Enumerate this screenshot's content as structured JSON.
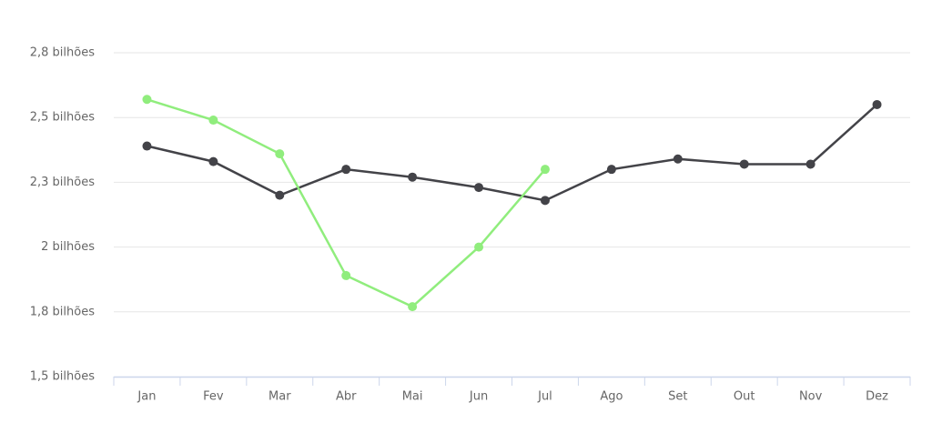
{
  "chart_data": {
    "type": "line",
    "categories": [
      "Jan",
      "Fev",
      "Mar",
      "Abr",
      "Mai",
      "Jun",
      "Jul",
      "Ago",
      "Set",
      "Out",
      "Nov",
      "Dez"
    ],
    "series": [
      {
        "color": "#434348",
        "values": [
          2.39,
          2.33,
          2.2,
          2.3,
          2.27,
          2.23,
          2.18,
          2.3,
          2.34,
          2.32,
          2.32,
          2.55
        ]
      },
      {
        "color": "#90ed7d",
        "values": [
          2.57,
          2.49,
          2.36,
          1.89,
          1.77,
          2.0,
          2.3,
          null,
          null,
          null,
          null,
          null
        ]
      }
    ],
    "ylim": [
      1.5,
      2.75
    ],
    "yticks": [
      {
        "value": 1.5,
        "label": "1,5 bilhões"
      },
      {
        "value": 1.75,
        "label": "1,8 bilhões"
      },
      {
        "value": 2,
        "label": "2 bilhões"
      },
      {
        "value": 2.25,
        "label": "2,3 bilhões"
      },
      {
        "value": 2.5,
        "label": "2,5 bilhões"
      },
      {
        "value": 2.75,
        "label": "2,8 bilhões"
      }
    ],
    "grid": true
  }
}
